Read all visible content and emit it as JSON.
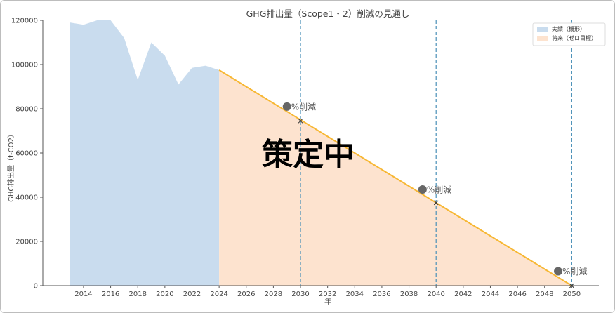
{
  "chart_data": {
    "type": "area",
    "title": "GHG排出量（Scope1・2）削減の見通し",
    "xlabel": "年",
    "ylabel": "GHG排出量（t-CO2）",
    "xlim": [
      2011,
      2052
    ],
    "ylim": [
      0,
      120000
    ],
    "x_ticks": [
      "2014",
      "2016",
      "2018",
      "2020",
      "2022",
      "2024",
      "2026",
      "2028",
      "2030",
      "2032",
      "2034",
      "2036",
      "2038",
      "2040",
      "2042",
      "2044",
      "2046",
      "2048",
      "2050"
    ],
    "y_ticks": [
      "0",
      "20000",
      "40000",
      "60000",
      "80000",
      "100000",
      "120000"
    ],
    "series": [
      {
        "name": "実績（概形）",
        "color": "#c9dcee",
        "x": [
          2013,
          2014,
          2015,
          2016,
          2017,
          2018,
          2019,
          2020,
          2021,
          2022,
          2023,
          2024
        ],
        "y": [
          119000,
          118000,
          120000,
          120000,
          112000,
          93000,
          110000,
          104000,
          91000,
          98500,
          99500,
          97500
        ]
      },
      {
        "name": "将来（ゼロ目標）",
        "color": "#fde3cf",
        "line_color": "#f7b733",
        "x": [
          2024,
          2050
        ],
        "y": [
          97500,
          0
        ]
      }
    ],
    "vlines": [
      2030,
      2040,
      2050
    ],
    "markers": [
      {
        "x": 2030,
        "y": 74500
      },
      {
        "x": 2040,
        "y": 37500
      },
      {
        "x": 2050,
        "y": 0
      }
    ],
    "annotations": [
      {
        "text": "%削減",
        "x": 2029,
        "y": 81000
      },
      {
        "text": "%削減",
        "x": 2039,
        "y": 43500
      },
      {
        "text": "%削減",
        "x": 2049,
        "y": 6500
      }
    ],
    "overlay_text": "策定中",
    "legend_position": "top-right",
    "grid": false
  }
}
